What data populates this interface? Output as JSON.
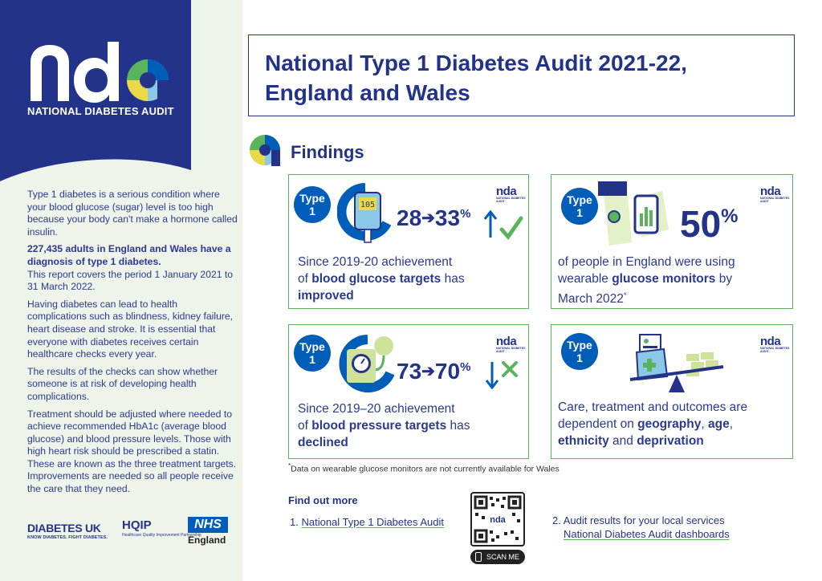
{
  "brand": {
    "logo_word": "nda",
    "logo_subtitle": "NATIONAL DIABETES AUDIT",
    "navy": "#24338a",
    "green": "#5bb35e",
    "blue": "#005eb8"
  },
  "intro": {
    "p1": "Type 1 diabetes is a serious condition where your blood glucose (sugar) level is too high because your body can't make a hormone called insulin.",
    "p2_bold": "227,435 adults in England and Wales have a diagnosis of type 1 diabetes.",
    "p2_rest": "This report covers the period 1 January 2021 to 31 March 2022.",
    "p3": "Having diabetes can lead to health complications such as blindness, kidney failure, heart disease and stroke. It is essential that everyone with diabetes receives certain healthcare checks every year.",
    "p4": "The results of the checks can show whether someone is at risk of developing health complications.",
    "p5": "Treatment should be adjusted where needed to achieve recommended HbA1c (average blood glucose) and blood pressure levels. Those with high heart risk should be prescribed a statin. These are known as the three treatment targets. Improvements are needed so all people receive the care that they need."
  },
  "partners": {
    "diabetes_uk": "DIABETES UK",
    "diabetes_uk_tag": "KNOW DIABETES. FIGHT DIABETES.",
    "hqip": "HQIP",
    "hqip_tag": "Healthcare Quality Improvement Partnership",
    "nhs": "NHS",
    "nhs_region": "England"
  },
  "title": {
    "line1": "National Type 1 Diabetes Audit 2021-22,",
    "line2": "England and Wales"
  },
  "findings_label": "Findings",
  "badge_line1": "Type",
  "badge_line2": "1",
  "mini_logo": "nda",
  "mini_logo_sub": "NATIONAL DIABETES AUDIT",
  "cards": {
    "glucose": {
      "from": "28",
      "to": "33",
      "unit": "%",
      "meter_reading": "105",
      "t1": "Since 2019-20 achievement",
      "t2a": "of ",
      "t2b": "blood glucose targets",
      "t2c": " has",
      "t3": "improved"
    },
    "monitors": {
      "value": "50",
      "unit": "%",
      "t1": "of people in England were using",
      "t2a": "wearable ",
      "t2b": "glucose monitors",
      "t2c": " by",
      "t3": "March 2022",
      "t3_mark": "*"
    },
    "pressure": {
      "from": "73",
      "to": "70",
      "unit": "%",
      "t1": "Since 2019–20 achievement",
      "t2a": "of ",
      "t2b": "blood pressure targets",
      "t2c": " has",
      "t3": "declined"
    },
    "outcomes": {
      "t1": "Care, treatment and outcomes are",
      "t2a": "dependent on ",
      "t2b": "geography",
      "t2c": ", ",
      "t2d": "age",
      "t2e": ",",
      "t3a": "ethnicity",
      "t3b": " and ",
      "t3c": "deprivation"
    }
  },
  "footnote_mark": "*",
  "footnote": "Data on wearable glucose monitors are not currently available for Wales",
  "find_out_more": "Find out more",
  "link1_num": "1.",
  "link1_text": "National Type 1 Diabetes Audit",
  "link2_prefix": "2. Audit results for your local services",
  "link2_text": "National Diabetes Audit dashboards",
  "qr_label": "nda",
  "scan_label": "SCAN ME"
}
